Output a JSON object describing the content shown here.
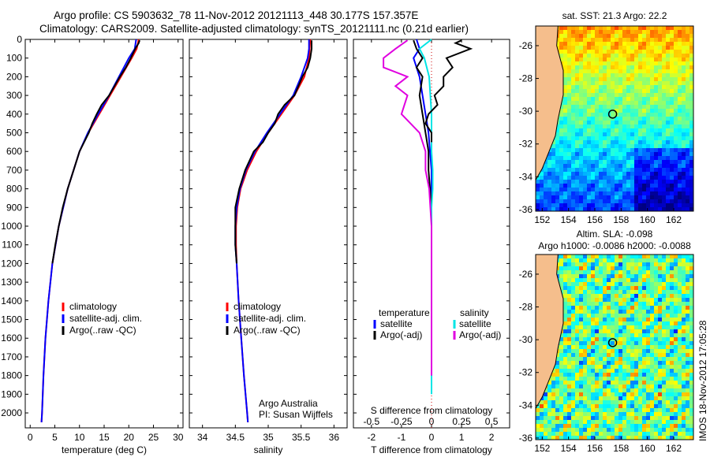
{
  "title_line1": "Argo profile: CS 5903632_78 11-Nov-2012 20121113_448 30.177S 157.357E",
  "title_line2": "Climatology: CARS2009. Satellite-adjusted climatology: synTS_20121111.nc (0.21d earlier)",
  "watermark": "IMOS 18-Nov-2012 17:05:28",
  "colors": {
    "clim": "#ff0000",
    "sat": "#0000ff",
    "argo": "#000000",
    "sal_sat": "#00e5e5",
    "sal_argo": "#e000e0",
    "land": "#f5be8c"
  },
  "chart_data": [
    {
      "type": "line",
      "name": "temperature-profile",
      "xlabel": "temperature (deg C)",
      "ylabel": "",
      "xlim": [
        -1,
        31
      ],
      "ylim": [
        2080,
        0
      ],
      "xticks": [
        0,
        5,
        10,
        15,
        20,
        25,
        30
      ],
      "yticks": [
        0,
        100,
        200,
        300,
        400,
        500,
        600,
        700,
        800,
        900,
        1000,
        1100,
        1200,
        1300,
        1400,
        1500,
        1600,
        1700,
        1800,
        1900,
        2000
      ],
      "legend": [
        "climatology",
        "satellite-adj. clim.",
        "Argo(..raw -QC)"
      ],
      "series": [
        {
          "name": "climatology",
          "depth": [
            0,
            50,
            100,
            200,
            300,
            400,
            500,
            600,
            700,
            800,
            1000,
            1200,
            1400,
            1600,
            1800,
            2000,
            2050
          ],
          "values": [
            22.0,
            21.6,
            20.6,
            18.4,
            16.2,
            14.0,
            11.8,
            10.0,
            8.8,
            7.6,
            5.8,
            4.5,
            3.7,
            3.1,
            2.7,
            2.4,
            2.3
          ]
        },
        {
          "name": "satellite-adj. clim.",
          "depth": [
            0,
            50,
            100,
            200,
            300,
            400,
            500,
            600,
            700,
            800,
            1000,
            1200,
            1400,
            1600,
            1800,
            2000,
            2050
          ],
          "values": [
            21.5,
            21.2,
            20.0,
            18.0,
            16.0,
            13.8,
            11.7,
            10.0,
            8.8,
            7.6,
            5.8,
            4.5,
            3.7,
            3.1,
            2.7,
            2.4,
            2.3
          ]
        },
        {
          "name": "Argo(..raw -QC)",
          "depth": [
            5,
            20,
            50,
            100,
            150,
            200,
            300,
            350,
            400,
            450,
            500,
            600,
            700,
            800,
            900,
            1000,
            1100,
            1200
          ],
          "values": [
            22.2,
            22.0,
            21.3,
            20.4,
            19.4,
            18.2,
            16.0,
            14.5,
            13.5,
            12.6,
            11.9,
            10.0,
            8.8,
            7.6,
            6.6,
            5.8,
            5.1,
            4.5
          ]
        }
      ]
    },
    {
      "type": "line",
      "name": "salinity-profile",
      "xlabel": "salinity",
      "ylabel": "",
      "xlim": [
        33.8,
        36.2
      ],
      "ylim": [
        2080,
        0
      ],
      "xticks": [
        34,
        34.5,
        35,
        35.5,
        36
      ],
      "legend": [
        "climatology",
        "satellite-adj. clim.",
        "Argo(..raw -QC)"
      ],
      "annotation": [
        "Argo Australia",
        "PI: Susan Wijffels"
      ],
      "series": [
        {
          "name": "climatology",
          "depth": [
            0,
            50,
            100,
            200,
            300,
            400,
            500,
            600,
            700,
            800,
            900,
            1000,
            1100,
            1200,
            1400,
            1600,
            1800,
            2000,
            2050
          ],
          "values": [
            35.64,
            35.63,
            35.62,
            35.55,
            35.4,
            35.2,
            35.0,
            34.82,
            34.68,
            34.58,
            34.53,
            34.51,
            34.51,
            34.52,
            34.55,
            34.59,
            34.63,
            34.68,
            34.69
          ]
        },
        {
          "name": "satellite-adj. clim.",
          "depth": [
            0,
            50,
            100,
            200,
            300,
            400,
            500,
            600,
            700,
            800,
            900,
            1000,
            1100,
            1200,
            1400,
            1600,
            1800,
            2000,
            2050
          ],
          "values": [
            35.62,
            35.62,
            35.6,
            35.5,
            35.38,
            35.18,
            34.98,
            34.8,
            34.66,
            34.57,
            34.52,
            34.5,
            34.5,
            34.52,
            34.55,
            34.59,
            34.63,
            34.68,
            34.69
          ]
        },
        {
          "name": "Argo(..raw -QC)",
          "depth": [
            5,
            50,
            100,
            150,
            200,
            300,
            350,
            400,
            450,
            500,
            550,
            600,
            700,
            800,
            900,
            1000,
            1100,
            1200
          ],
          "values": [
            35.66,
            35.66,
            35.64,
            35.6,
            35.52,
            35.4,
            35.25,
            35.15,
            35.1,
            35.0,
            34.92,
            34.78,
            34.65,
            34.56,
            34.5,
            34.5,
            34.5,
            34.52
          ]
        }
      ]
    },
    {
      "type": "line",
      "name": "difference-profile",
      "xlabel": "T difference from climatology",
      "xlabel_top": "S difference from climatology",
      "xlim": [
        -2.6,
        2.6
      ],
      "ylim": [
        2080,
        0
      ],
      "xticks": [
        -2,
        -1,
        0,
        1,
        2
      ],
      "xticks_s": [
        -0.5,
        -0.25,
        0,
        0.25,
        0.5
      ],
      "legend_temperature": [
        "temperature",
        "satellite",
        "Argo(-adj)"
      ],
      "legend_salinity": [
        "salinity",
        "satellite",
        "Argo(-adj)"
      ],
      "series": [
        {
          "name": "T satellite",
          "depth": [
            0,
            50,
            100,
            200,
            300,
            400,
            500,
            600,
            700,
            900,
            1000,
            1100
          ],
          "values": [
            -0.5,
            -0.4,
            -0.6,
            -0.4,
            -0.3,
            -0.2,
            -0.1,
            -0.05,
            0,
            0,
            0,
            0
          ]
        },
        {
          "name": "T Argo(-adj)",
          "depth": [
            5,
            50,
            100,
            150,
            200,
            300,
            400,
            500,
            600,
            700,
            900,
            1000,
            1100,
            1200
          ],
          "values": [
            -0.6,
            -0.5,
            -0.3,
            -0.5,
            -0.3,
            -0.4,
            -0.3,
            -0.2,
            -0.1,
            -0.1,
            0,
            0,
            0,
            0
          ]
        },
        {
          "name": "S satellite",
          "depth": [
            0,
            50,
            100,
            200,
            300,
            400,
            500,
            600,
            700,
            800,
            900,
            1000,
            1100,
            1400,
            1700,
            1900
          ],
          "values": [
            0.0,
            -0.1,
            -0.06,
            -0.02,
            -0.01,
            0.0,
            0.0,
            0.0,
            0.01,
            0.01,
            0.0,
            0.0,
            0.0,
            0.0,
            0.0,
            0.0
          ]
        },
        {
          "name": "S Argo(-adj)",
          "depth": [
            5,
            50,
            100,
            150,
            200,
            250,
            300,
            400,
            500,
            600,
            700,
            800,
            1000,
            1100,
            1300,
            1500,
            1700,
            1800
          ],
          "values": [
            -0.2,
            -0.3,
            -0.4,
            -0.4,
            -0.2,
            -0.3,
            -0.2,
            -0.25,
            -0.1,
            -0.05,
            -0.05,
            -0.02,
            0,
            0,
            0,
            0,
            0,
            0
          ]
        },
        {
          "name": "T Argo raw",
          "depth": [
            5,
            20,
            50,
            100,
            150,
            200,
            250,
            300,
            350,
            400,
            450,
            500,
            550
          ],
          "values": [
            1.0,
            0.8,
            1.3,
            0.5,
            0.7,
            0.4,
            0.4,
            0.1,
            0.2,
            -0.1,
            -0.2,
            0.0,
            0.0
          ]
        }
      ]
    },
    {
      "type": "heatmap",
      "name": "sst-map",
      "title": "sat. SST: 21.3  Argo: 22.2",
      "xlim": [
        151.5,
        163.5
      ],
      "ylim": [
        -36.1,
        -24.8
      ],
      "xticks": [
        152,
        154,
        156,
        158,
        160,
        162
      ],
      "yticks": [
        -26,
        -28,
        -30,
        -32,
        -34,
        -36
      ],
      "float_position": {
        "lon": 157.357,
        "lat": -30.177
      }
    },
    {
      "type": "heatmap",
      "name": "sla-map",
      "title": "Altim. SLA: -0.098",
      "subtitle": "Argo h1000: -0.0086  h2000: -0.0088",
      "xlim": [
        151.5,
        163.5
      ],
      "ylim": [
        -36.1,
        -24.8
      ],
      "xticks": [
        152,
        154,
        156,
        158,
        160,
        162
      ],
      "yticks": [
        -26,
        -28,
        -30,
        -32,
        -34,
        -36
      ],
      "float_position": {
        "lon": 157.357,
        "lat": -30.177
      }
    }
  ]
}
